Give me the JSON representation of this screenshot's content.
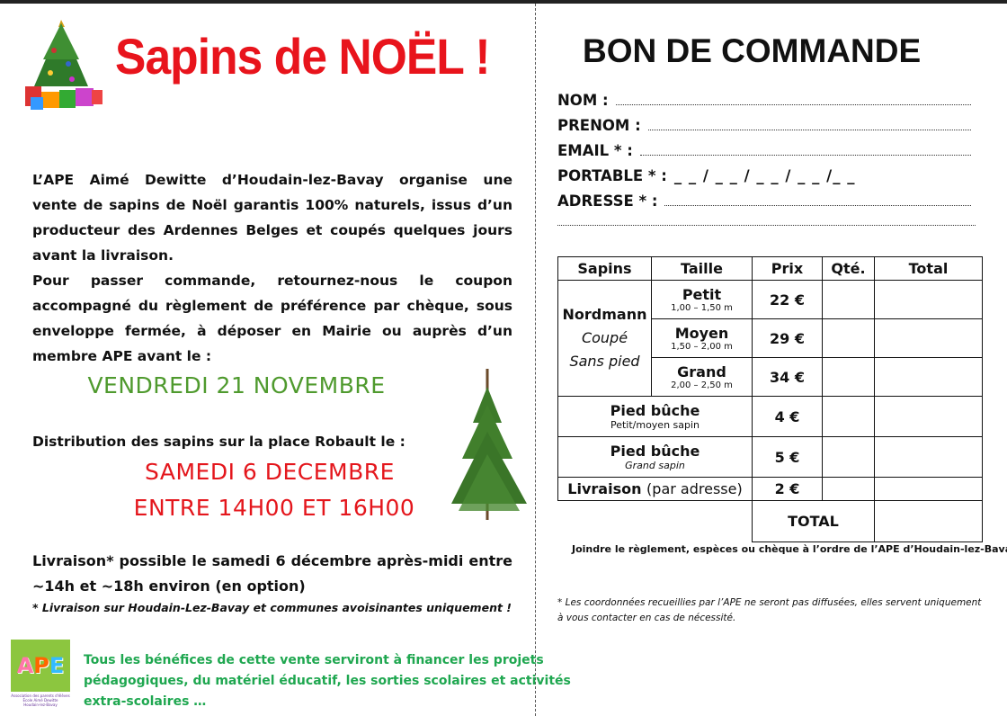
{
  "left": {
    "title": "Sapins de NOËL !",
    "intro_lines": [
      "L’APE Aimé Dewitte d’Houdain-lez-Bavay organise une",
      "vente de sapins de Noël garantis 100% naturels, issus d’un",
      "producteur des Ardennes Belges et coupés quelques jours",
      "avant la livraison.",
      "Pour passer commande, retournez-nous le coupon",
      "accompagné du règlement de préférence par chèque, sous",
      "enveloppe fermée, à déposer en Mairie ou auprès d’un",
      "membre APE avant le :"
    ],
    "deadline": "VENDREDI 21 NOVEMBRE",
    "distribution_text": "Distribution des sapins sur la place Robault le :",
    "distribution_date": "SAMEDI 6 DECEMBRE",
    "distribution_time": "ENTRE 14H00 ET 16H00",
    "delivery_lines": [
      "Livraison* possible le samedi 6 décembre après-midi entre",
      "~14h et ~18h environ (en option)"
    ],
    "delivery_note": "* Livraison sur Houdain-Lez-Bavay et communes avoisinantes uniquement !",
    "benefits_lines": [
      "Tous les bénéfices de cette vente serviront à financer les projets",
      "pédagogiques, du matériel éducatif, les sorties scolaires et activités",
      "extra-scolaires …"
    ],
    "logo_text": "APE",
    "logo_caption": "Association des parents d'élèves École Aimé Dewitte Houdain-lez-Bavay"
  },
  "right": {
    "title": "BON DE COMMANDE",
    "fields": {
      "nom": "NOM :",
      "prenom": "PRENOM :",
      "email": "EMAIL * :",
      "portable": "PORTABLE * :",
      "portable_mask": "_ _ / _ _ / _ _ / _ _ /_ _",
      "adresse": "ADRESSE * :"
    },
    "table": {
      "headers": [
        "Sapins",
        "Taille",
        "Prix",
        "Qté.",
        "Total"
      ],
      "variety": "Nordmann",
      "variety_cut": "Coupé",
      "variety_stand": "Sans pied",
      "sizes": [
        {
          "name": "Petit",
          "range": "1,00 – 1,50 m",
          "price": "22 €"
        },
        {
          "name": "Moyen",
          "range": "1,50 – 2,00 m",
          "price": "29 €"
        },
        {
          "name": "Grand",
          "range": "2,00 – 2,50 m",
          "price": "34 €"
        }
      ],
      "extras": [
        {
          "name": "Pied bûche",
          "detail": "Petit/moyen sapin",
          "price": "4 €"
        },
        {
          "name": "Pied bûche",
          "detail": "Grand sapin",
          "price": "5 €"
        }
      ],
      "delivery_label": "Livraison",
      "delivery_detail": "(par adresse)",
      "delivery_price": "2 €",
      "total_label": "TOTAL"
    },
    "payment_note": "Joindre le règlement, espèces ou chèque à l’ordre de l’APE d’Houdain-lez-Bavay",
    "privacy_note": "* Les coordonnées recueillies par l’APE ne seront pas diffusées, elles servent uniquement à vous contacter en cas de nécessité."
  },
  "colors": {
    "title_red": "#e8141c",
    "deadline_green": "#4f9a2e",
    "date_red": "#e4161c",
    "benefits_green": "#1fa750"
  }
}
